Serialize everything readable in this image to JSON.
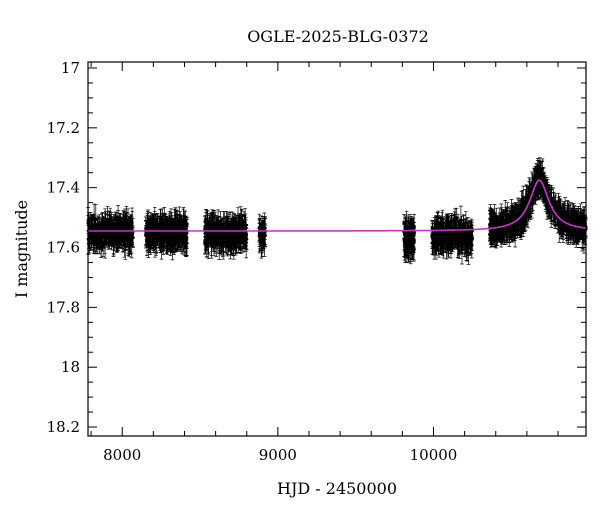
{
  "chart_data": {
    "type": "scatter",
    "title": "OGLE-2025-BLG-0372",
    "xlabel": "HJD - 2450000",
    "ylabel": "I magnitude",
    "xlim": [
      7780,
      10980
    ],
    "ylim": [
      18.23,
      16.98
    ],
    "y_inverted": true,
    "xticks": [
      8000,
      9000,
      10000
    ],
    "xtick_labels": [
      "8000",
      "9000",
      "10000"
    ],
    "yticks": [
      17,
      17.2,
      17.4,
      17.6,
      17.8,
      18,
      18.2
    ],
    "ytick_labels": [
      "17",
      "17.2",
      "17.4",
      "17.6",
      "17.8",
      "18",
      "18.2"
    ],
    "grid": false,
    "legend": "none",
    "point_color": "#000000",
    "model_color": "#cc33cc",
    "series": [
      {
        "kind": "photometry_with_errorbars",
        "seasons": [
          {
            "x_start": 7780,
            "x_end": 8070,
            "mag_mean": 17.55,
            "mag_scatter": 0.035,
            "err": 0.035
          },
          {
            "x_start": 8150,
            "x_end": 8420,
            "mag_mean": 17.55,
            "mag_scatter": 0.035,
            "err": 0.035
          },
          {
            "x_start": 8530,
            "x_end": 8800,
            "mag_mean": 17.555,
            "mag_scatter": 0.035,
            "err": 0.035
          },
          {
            "x_start": 8880,
            "x_end": 8920,
            "mag_mean": 17.56,
            "mag_scatter": 0.03,
            "err": 0.035
          },
          {
            "x_start": 9810,
            "x_end": 9880,
            "mag_mean": 17.57,
            "mag_scatter": 0.04,
            "err": 0.04
          },
          {
            "x_start": 9990,
            "x_end": 10250,
            "mag_mean": 17.56,
            "mag_scatter": 0.035,
            "err": 0.035
          },
          {
            "x_start": 10360,
            "x_end": 10980,
            "mag_mean": "model",
            "mag_scatter": 0.03,
            "err": 0.035
          }
        ]
      },
      {
        "kind": "model_curve",
        "baseline_mag": 17.545,
        "peak_x": 10680,
        "peak_mag": 17.375,
        "width": 75
      }
    ]
  }
}
